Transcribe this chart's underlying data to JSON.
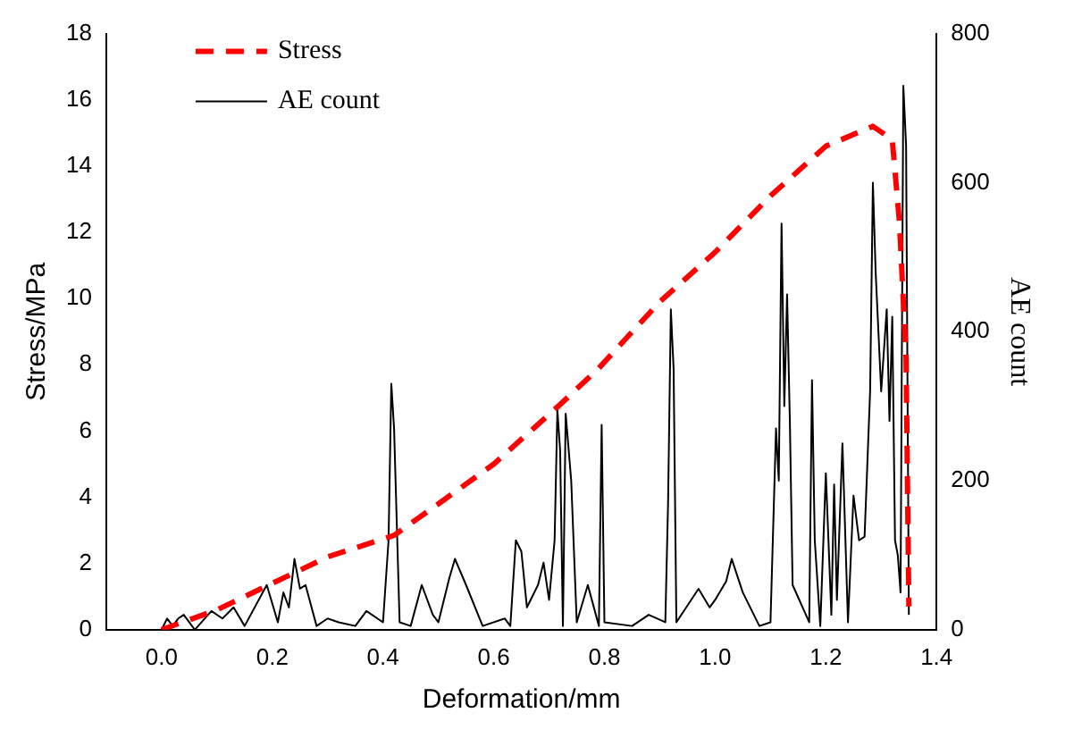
{
  "chart_data": {
    "type": "line",
    "xlabel": "Deformation/mm",
    "ylabel": "Stress/MPa",
    "y2label": "AE count",
    "legend": "top left",
    "grid": false,
    "marker": "none",
    "xlim": [
      -0.1,
      1.4
    ],
    "xticks": [
      {
        "value": 0,
        "label": "0.0"
      },
      0.2,
      0.4,
      0.6,
      0.8,
      {
        "value": 1,
        "label": "1.0"
      },
      1.2,
      1.4
    ],
    "ylim": [
      0,
      18
    ],
    "yticks": [
      0,
      2,
      4,
      6,
      8,
      10,
      12,
      14,
      16,
      18
    ],
    "y2lim": [
      0,
      800
    ],
    "y2ticks": [
      0,
      200,
      400,
      600,
      800
    ],
    "series": [
      {
        "name": "Stress",
        "color": "#ff0000",
        "line_style": "dashed",
        "x": [
          0,
          0.1,
          0.2,
          0.3,
          0.42,
          0.5,
          0.6,
          0.72,
          0.79,
          0.9,
          1.0,
          1.1,
          1.2,
          1.285,
          1.32,
          1.333,
          1.345,
          1.35
        ],
        "values": [
          0,
          0.6,
          1.4,
          2.2,
          2.85,
          3.8,
          5.0,
          6.8,
          7.9,
          9.9,
          11.4,
          13.1,
          14.6,
          15.2,
          14.8,
          12.3,
          8.2,
          0.7
        ]
      },
      {
        "name": "AE count",
        "color": "#000000",
        "axis": "y2",
        "line_style": "solid",
        "x": [
          0,
          0.01,
          0.02,
          0.03,
          0.04,
          0.06,
          0.09,
          0.11,
          0.13,
          0.15,
          0.19,
          0.21,
          0.22,
          0.23,
          0.24,
          0.25,
          0.26,
          0.28,
          0.3,
          0.32,
          0.35,
          0.37,
          0.4,
          0.41,
          0.415,
          0.42,
          0.43,
          0.45,
          0.47,
          0.49,
          0.5,
          0.52,
          0.53,
          0.55,
          0.58,
          0.62,
          0.63,
          0.64,
          0.65,
          0.66,
          0.68,
          0.69,
          0.7,
          0.71,
          0.715,
          0.72,
          0.725,
          0.73,
          0.74,
          0.75,
          0.77,
          0.79,
          0.795,
          0.8,
          0.85,
          0.88,
          0.91,
          0.915,
          0.92,
          0.925,
          0.93,
          0.97,
          0.99,
          1.0,
          1.02,
          1.03,
          1.05,
          1.08,
          1.1,
          1.11,
          1.115,
          1.12,
          1.125,
          1.13,
          1.135,
          1.14,
          1.17,
          1.175,
          1.18,
          1.19,
          1.2,
          1.21,
          1.215,
          1.22,
          1.23,
          1.24,
          1.25,
          1.26,
          1.27,
          1.28,
          1.285,
          1.29,
          1.3,
          1.31,
          1.315,
          1.32,
          1.325,
          1.33,
          1.335,
          1.34,
          1.345,
          1.35
        ],
        "values": [
          0,
          15,
          5,
          15,
          20,
          0,
          25,
          15,
          30,
          5,
          60,
          10,
          50,
          30,
          95,
          55,
          60,
          5,
          15,
          10,
          5,
          25,
          10,
          120,
          330,
          270,
          10,
          5,
          60,
          20,
          10,
          70,
          95,
          60,
          5,
          15,
          5,
          120,
          105,
          30,
          60,
          90,
          40,
          120,
          295,
          240,
          5,
          290,
          200,
          10,
          60,
          5,
          275,
          10,
          5,
          20,
          10,
          170,
          430,
          350,
          10,
          55,
          30,
          40,
          65,
          95,
          50,
          5,
          10,
          270,
          200,
          545,
          300,
          450,
          280,
          60,
          10,
          335,
          120,
          5,
          210,
          20,
          195,
          40,
          250,
          10,
          180,
          120,
          125,
          320,
          600,
          480,
          320,
          430,
          280,
          420,
          120,
          100,
          50,
          730,
          650,
          20
        ]
      }
    ]
  }
}
